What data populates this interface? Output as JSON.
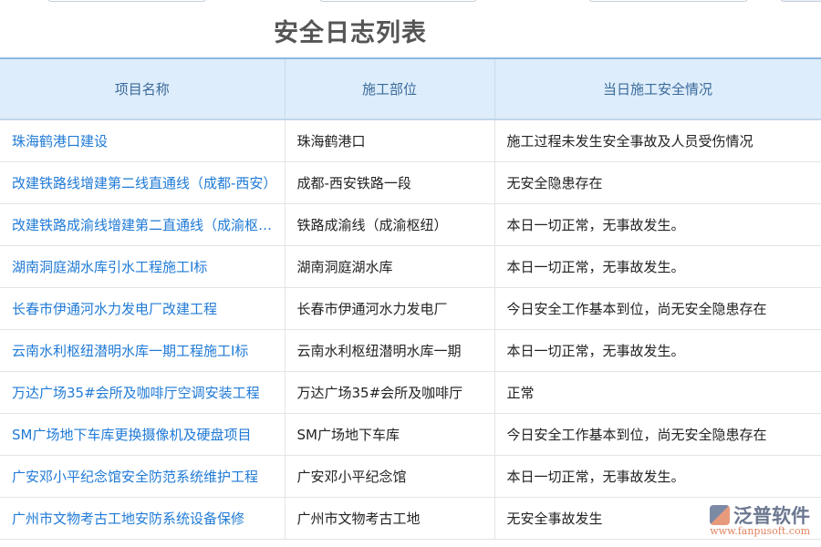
{
  "title": "安全日志列表",
  "columns": [
    "项目名称",
    "施工部位",
    "当日施工安全情况"
  ],
  "rows": [
    [
      "珠海鹤港口建设",
      "珠海鹤港口",
      "施工过程未发生安全事故及人员受伤情况"
    ],
    [
      "改建铁路线增建第二线直通线（成都-西安）",
      "成都-西安铁路一段",
      "无安全隐患存在"
    ],
    [
      "改建铁路成渝线增建第二直通线（成渝枢纽）",
      "铁路成渝线（成渝枢纽）",
      "本日一切正常，无事故发生。"
    ],
    [
      "湖南洞庭湖水库引水工程施工I标",
      "湖南洞庭湖水库",
      "本日一切正常，无事故发生。"
    ],
    [
      "长春市伊通河水力发电厂改建工程",
      "长春市伊通河水力发电厂",
      "今日安全工作基本到位，尚无安全隐患存在"
    ],
    [
      "云南水利枢纽潜明水库一期工程施工I标",
      "云南水利枢纽潜明水库一期",
      "本日一切正常，无事故发生。"
    ],
    [
      "万达广场35#会所及咖啡厅空调安装工程",
      "万达广场35#会所及咖啡厅",
      "正常"
    ],
    [
      "SM广场地下车库更换摄像机及硬盘项目",
      "SM广场地下车库",
      "今日安全工作基本到位，尚无安全隐患存在"
    ],
    [
      "广安邓小平纪念馆安全防范系统维护工程",
      "广安邓小平纪念馆",
      "本日一切正常，无事故发生。"
    ],
    [
      "广州市文物考古工地安防系统设备保修",
      "广州市文物考古工地",
      "无安全事故发生"
    ]
  ],
  "logo": {
    "name": "泛普软件",
    "url": "www.fanpusoft.com"
  }
}
